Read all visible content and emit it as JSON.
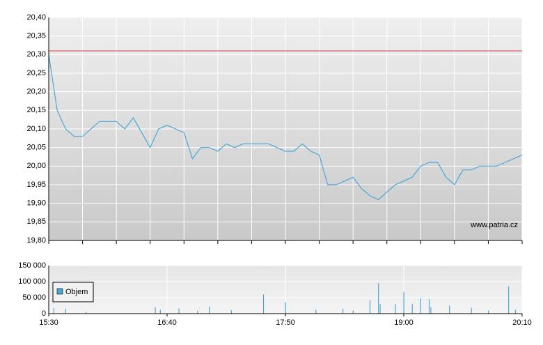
{
  "chart_data": [
    {
      "type": "line",
      "x": [
        "15:30",
        "15:35",
        "15:40",
        "15:45",
        "15:50",
        "15:55",
        "16:00",
        "16:05",
        "16:10",
        "16:15",
        "16:20",
        "16:25",
        "16:30",
        "16:35",
        "16:40",
        "16:45",
        "16:50",
        "16:55",
        "17:00",
        "17:05",
        "17:10",
        "17:15",
        "17:20",
        "17:25",
        "17:30",
        "17:35",
        "17:40",
        "17:45",
        "17:50",
        "17:55",
        "18:00",
        "18:05",
        "18:10",
        "18:15",
        "18:20",
        "18:25",
        "18:30",
        "18:35",
        "18:40",
        "18:45",
        "18:50",
        "18:55",
        "19:00",
        "19:05",
        "19:10",
        "19:15",
        "19:20",
        "19:25",
        "19:30",
        "19:35",
        "19:40",
        "19:45",
        "19:50",
        "19:55",
        "20:00",
        "20:05",
        "20:10"
      ],
      "series": [
        {
          "color": "#4aa8d8",
          "values": [
            20.3,
            20.15,
            20.1,
            20.08,
            20.08,
            20.1,
            20.12,
            20.12,
            20.12,
            20.1,
            20.13,
            20.09,
            20.05,
            20.1,
            20.11,
            20.1,
            20.09,
            20.02,
            20.05,
            20.05,
            20.04,
            20.06,
            20.05,
            20.06,
            20.06,
            20.06,
            20.06,
            20.05,
            20.04,
            20.04,
            20.06,
            20.04,
            20.03,
            19.95,
            19.95,
            19.96,
            19.97,
            19.94,
            19.92,
            19.91,
            19.93,
            19.95,
            19.96,
            19.97,
            20.0,
            20.01,
            20.01,
            19.97,
            19.95,
            19.99,
            19.99,
            20.0,
            20.0,
            20.0,
            20.01,
            20.02,
            20.03
          ]
        }
      ],
      "xlim": [
        "15:30",
        "20:10"
      ],
      "ylim": [
        19.8,
        20.4
      ],
      "yticks": [
        {
          "value": 19.8,
          "label": "19,80"
        },
        {
          "value": 19.85,
          "label": "19,85"
        },
        {
          "value": 19.9,
          "label": "19,90"
        },
        {
          "value": 19.95,
          "label": "19,95"
        },
        {
          "value": 20.0,
          "label": "20,00"
        },
        {
          "value": 20.05,
          "label": "20,05"
        },
        {
          "value": 20.1,
          "label": "20,10"
        },
        {
          "value": 20.15,
          "label": "20,15"
        },
        {
          "value": 20.2,
          "label": "20,20"
        },
        {
          "value": 20.25,
          "label": "20,25"
        },
        {
          "value": 20.3,
          "label": "20,30"
        },
        {
          "value": 20.35,
          "label": "20,35"
        },
        {
          "value": 20.4,
          "label": "20,40"
        }
      ],
      "reference_line": {
        "value": 20.31,
        "color": "#d04040"
      },
      "watermark": "www.patria.cz",
      "grid": true
    },
    {
      "type": "bar",
      "x": [
        "15:33",
        "15:40",
        "15:52",
        "16:33",
        "16:36",
        "16:47",
        "16:58",
        "17:05",
        "17:18",
        "17:37",
        "17:50",
        "18:08",
        "18:24",
        "18:30",
        "18:40",
        "18:45",
        "18:46",
        "18:55",
        "19:00",
        "19:05",
        "19:10",
        "19:15",
        "19:16",
        "19:27",
        "19:40",
        "19:50",
        "20:02",
        "20:06"
      ],
      "series": [
        {
          "name": "Objem",
          "color": "#4aa8d8",
          "values": [
            18000,
            15000,
            6000,
            20000,
            12000,
            16000,
            9000,
            22000,
            11000,
            60000,
            35000,
            12000,
            15000,
            10000,
            42000,
            95000,
            30000,
            30000,
            68000,
            30000,
            48000,
            45000,
            20000,
            25000,
            18000,
            10000,
            85000,
            12000
          ]
        }
      ],
      "xlim": [
        "15:30",
        "20:10"
      ],
      "xticks": [
        "15:30",
        "16:40",
        "17:50",
        "19:00",
        "20:10"
      ],
      "ylim": [
        0,
        150000
      ],
      "yticks": [
        0,
        {
          "value": 50000,
          "label": "50 000"
        },
        {
          "value": 100000,
          "label": "100 000"
        },
        {
          "value": 150000,
          "label": "150 000"
        }
      ],
      "grid": true
    }
  ]
}
